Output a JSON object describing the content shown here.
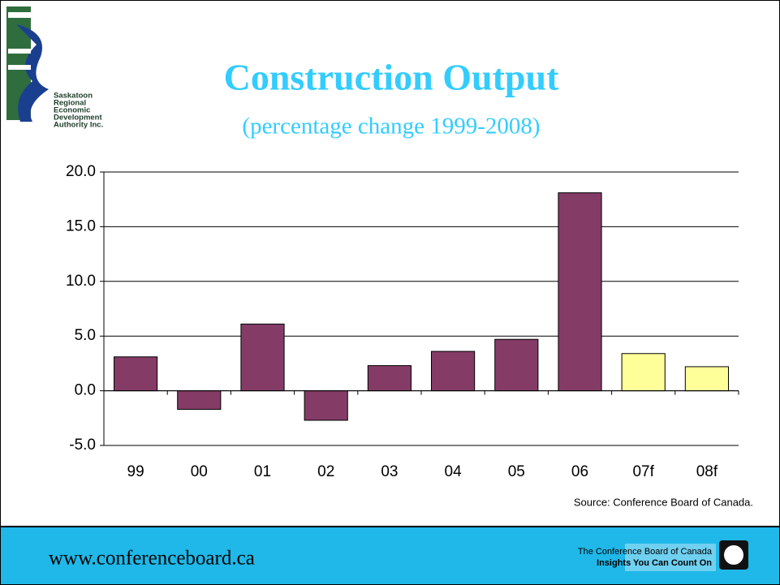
{
  "chart_data": {
    "type": "bar",
    "title": "Construction Output",
    "subtitle": "(percentage change 1999-2008)",
    "categories": [
      "99",
      "00",
      "01",
      "02",
      "03",
      "04",
      "05",
      "06",
      "07f",
      "08f"
    ],
    "values": [
      3.1,
      -1.7,
      6.1,
      -2.7,
      2.3,
      3.6,
      4.7,
      18.1,
      3.4,
      2.2
    ],
    "colors": [
      "#843c66",
      "#843c66",
      "#843c66",
      "#843c66",
      "#843c66",
      "#843c66",
      "#843c66",
      "#843c66",
      "#ffff99",
      "#ffff99"
    ],
    "ylim": [
      -5,
      20
    ],
    "yticks": [
      {
        "value": -5,
        "label": "-5.0"
      },
      {
        "value": 0,
        "label": "0.0"
      },
      {
        "value": 5,
        "label": "5.0"
      },
      {
        "value": 10,
        "label": "10.0"
      },
      {
        "value": 15,
        "label": "15.0"
      },
      {
        "value": 20,
        "label": "20.0"
      }
    ],
    "grid": true,
    "source": "Source: Conference Board of Canada."
  },
  "logo": {
    "lines": [
      "Saskatoon",
      "Regional",
      "Economic",
      "Development",
      "Authority Inc."
    ]
  },
  "footer": {
    "url": "www.conferenceboard.ca",
    "org": "The Conference Board of Canada",
    "tagline": "Insights You Can Count On"
  }
}
